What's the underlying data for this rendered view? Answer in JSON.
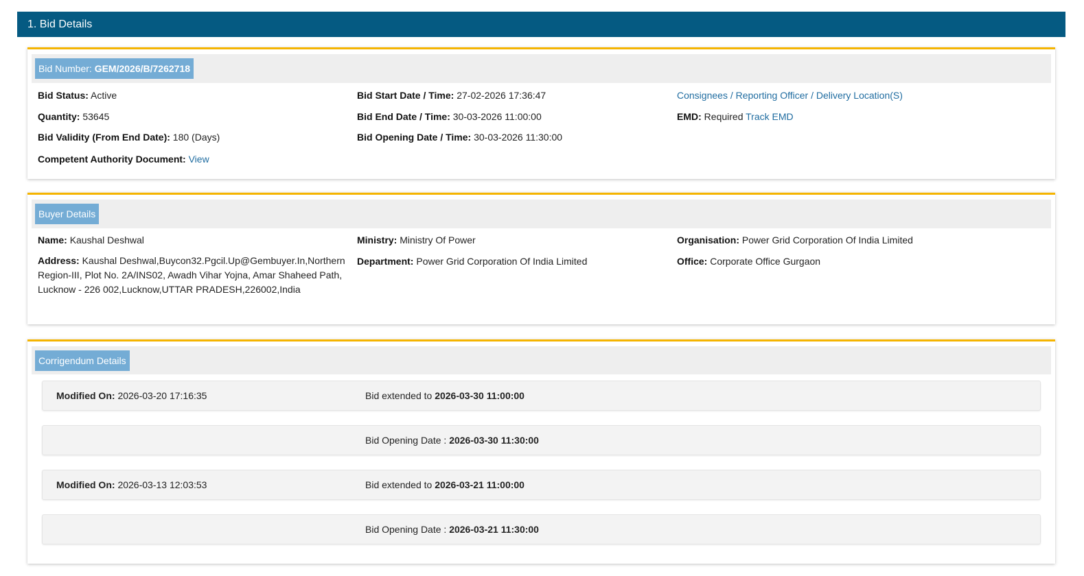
{
  "section_title": "1. Bid Details",
  "bid": {
    "number_label": "Bid Number:",
    "number": "GEM/2026/B/7262718",
    "status_label": "Bid Status:",
    "status": "Active",
    "quantity_label": "Quantity:",
    "quantity": "53645",
    "validity_label": "Bid Validity (From End Date):",
    "validity": "180 (Days)",
    "cad_label": "Competent Authority Document:",
    "cad_link": "View",
    "start_label": "Bid Start Date / Time:",
    "start": "27-02-2026 17:36:47",
    "end_label": "Bid End Date / Time:",
    "end": "30-03-2026 11:00:00",
    "opening_label": "Bid Opening Date / Time:",
    "opening": "30-03-2026 11:30:00",
    "consignees_link": "Consignees / Reporting Officer / Delivery Location(S)",
    "emd_label": "EMD:",
    "emd": "Required",
    "track_emd": "Track EMD"
  },
  "buyer": {
    "title": "Buyer Details",
    "name_label": "Name:",
    "name": "Kaushal Deshwal",
    "address_label": "Address:",
    "address": "Kaushal Deshwal,Buycon32.Pgcil.Up@Gembuyer.In,Northern Region-III, Plot No. 2A/INS02, Awadh Vihar Yojna, Amar Shaheed Path, Lucknow - 226 002,Lucknow,UTTAR PRADESH,226002,India",
    "ministry_label": "Ministry:",
    "ministry": "Ministry Of Power",
    "department_label": "Department:",
    "department": "Power Grid Corporation Of India Limited",
    "organisation_label": "Organisation:",
    "organisation": "Power Grid Corporation Of India Limited",
    "office_label": "Office:",
    "office": "Corporate Office Gurgaon"
  },
  "corrigendum": {
    "title": "Corrigendum Details",
    "rows": [
      {
        "modified_label": "Modified On:",
        "modified": "2026-03-20 17:16:35",
        "text": "Bid extended to",
        "value": "2026-03-30 11:00:00"
      },
      {
        "modified_label": "",
        "modified": "",
        "text": "Bid Opening Date :",
        "value": "2026-03-30 11:30:00"
      },
      {
        "modified_label": "Modified On:",
        "modified": "2026-03-13 12:03:53",
        "text": "Bid extended to",
        "value": "2026-03-21 11:00:00"
      },
      {
        "modified_label": "",
        "modified": "",
        "text": "Bid Opening Date :",
        "value": "2026-03-21 11:30:00"
      }
    ]
  }
}
